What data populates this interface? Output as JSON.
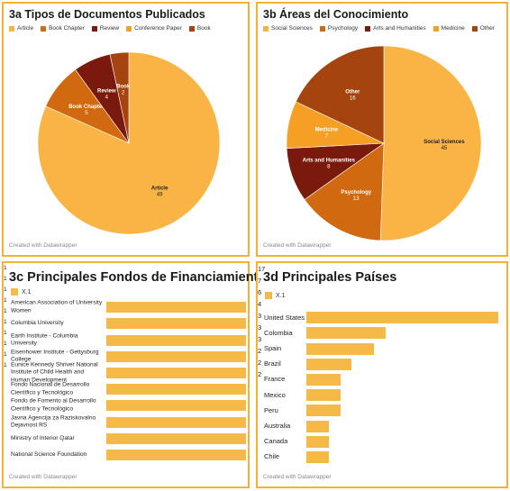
{
  "colors": {
    "border": "#f4b233",
    "bar": "#f4b947",
    "pie_a": [
      "#f9b445",
      "#d0690f",
      "#7a1a0d",
      "#f5a024",
      "#a5440f"
    ],
    "pie_b": [
      "#f9b445",
      "#d0690f",
      "#7a1a0d",
      "#f5a024",
      "#a5440f"
    ]
  },
  "credit": "Created with Datawrapper",
  "panels": {
    "p1": {
      "title": "3a Tipos de Documentos Publicados"
    },
    "p2": {
      "title": "3b Áreas del Conocimiento"
    },
    "p3": {
      "title": "3c Principales Fondos de Financiamiento",
      "legend": "X.1"
    },
    "p4": {
      "title": "3d Principales Países",
      "legend": "X.1"
    }
  },
  "chart_data": [
    {
      "type": "pie",
      "title": "3a Tipos de Documentos Publicados",
      "legend": [
        "Article",
        "Book Chapter",
        "Review",
        "Conference Paper",
        "Book"
      ],
      "slices": [
        {
          "name": "Article",
          "value": 49
        },
        {
          "name": "Book Chapter",
          "value": 5
        },
        {
          "name": "Review",
          "value": 4
        },
        {
          "name": "Conference Paper",
          "value": 0
        },
        {
          "name": "Book",
          "value": 2
        }
      ]
    },
    {
      "type": "pie",
      "title": "3b Áreas del Conocimiento",
      "legend": [
        "Social Sciences",
        "Psychology",
        "Arts and Humanities",
        "Medicine",
        "Other"
      ],
      "slices": [
        {
          "name": "Social Sciences",
          "value": 45
        },
        {
          "name": "Psychology",
          "value": 13
        },
        {
          "name": "Arts and Humanities",
          "value": 8
        },
        {
          "name": "Medicine",
          "value": 7
        },
        {
          "name": "Other",
          "value": 16
        }
      ]
    },
    {
      "type": "bar",
      "title": "3c Principales Fondos de Financiamiento",
      "series_name": "X.1",
      "categories": [
        "American Association of University Women",
        "Columbia University",
        "Earth Institute - Columbia University",
        "Eisenhower Institute - Gettysburg College",
        "Eunice Kennedy Shriver National Institute of Child Health and Human Development",
        "Fondo Nacional de Desarrollo Científico y Tecnológico",
        "Fondo de Fomento al Desarrollo Científico y Tecnológico",
        "Javna Agencija za Raziskovalno Dejavnost RS",
        "Ministry of Interior Qatar",
        "National Science Foundation"
      ],
      "values": [
        1,
        1,
        1,
        1,
        1,
        1,
        1,
        1,
        1,
        1
      ]
    },
    {
      "type": "bar",
      "title": "3d Principales Países",
      "series_name": "X.1",
      "categories": [
        "United States",
        "Colombia",
        "Spain",
        "Brazil",
        "France",
        "Mexico",
        "Peru",
        "Australia",
        "Canada",
        "Chile"
      ],
      "values": [
        17,
        7,
        6,
        4,
        3,
        3,
        3,
        2,
        2,
        2
      ]
    }
  ]
}
